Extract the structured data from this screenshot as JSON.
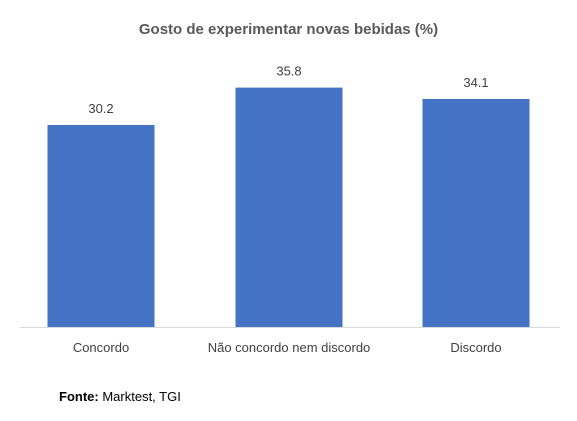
{
  "chart_data": {
    "type": "bar",
    "title": "Gosto de experimentar novas bebidas (%)",
    "categories": [
      "Concordo",
      "Não concordo nem discordo",
      "Discordo"
    ],
    "values": [
      30.2,
      35.8,
      34.1
    ],
    "value_labels": [
      "30.2",
      "35.8",
      "34.1"
    ],
    "xlabel": "",
    "ylabel": "",
    "ylim": [
      0,
      40
    ],
    "grid": false,
    "legend": "none",
    "bar_color": "#4472C4"
  },
  "source": {
    "label": "Fonte:",
    "text": "Marktest, TGI"
  }
}
